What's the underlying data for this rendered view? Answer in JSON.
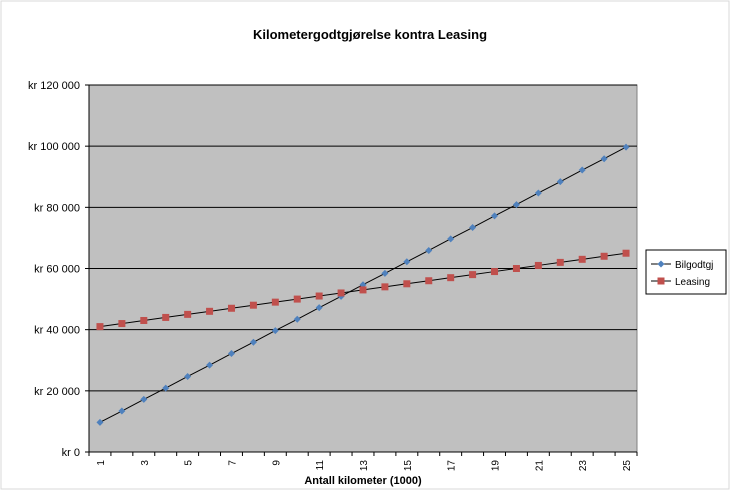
{
  "chart_data": {
    "type": "line",
    "title": "Kilometergodtgjørelse kontra Leasing",
    "xlabel": "Antall kilometer (1000)",
    "ylabel": "",
    "x": [
      1,
      2,
      3,
      4,
      5,
      6,
      7,
      8,
      9,
      10,
      11,
      12,
      13,
      14,
      15,
      16,
      17,
      18,
      19,
      20,
      21,
      22,
      23,
      24,
      25
    ],
    "x_tick_labels": [
      "1",
      "3",
      "5",
      "7",
      "9",
      "11",
      "13",
      "15",
      "17",
      "19",
      "21",
      "23",
      "25"
    ],
    "y_tick_labels": [
      "kr 0",
      "kr 20 000",
      "kr 40 000",
      "kr 60 000",
      "kr 80 000",
      "kr 100 000",
      "kr 120 000"
    ],
    "ylim": [
      0,
      120000
    ],
    "grid": true,
    "legend_position": "right",
    "plot_background": "#c0c0c0",
    "series": [
      {
        "name": "Bilgodtgj",
        "color": "#4f81bd",
        "marker": "diamond",
        "values": [
          9700,
          13400,
          17200,
          20900,
          24700,
          28400,
          32200,
          35900,
          39700,
          43400,
          47200,
          50900,
          54700,
          58400,
          62200,
          65900,
          69700,
          73400,
          77200,
          80900,
          84700,
          88400,
          92200,
          95900,
          99700
        ]
      },
      {
        "name": "Leasing",
        "color": "#c0504d",
        "marker": "square",
        "values": [
          41000,
          42000,
          43000,
          44000,
          45000,
          46000,
          47000,
          48000,
          49000,
          50000,
          51000,
          52000,
          53000,
          54000,
          55000,
          56000,
          57000,
          58000,
          59000,
          60000,
          61000,
          62000,
          63000,
          64000,
          65000
        ]
      }
    ]
  }
}
